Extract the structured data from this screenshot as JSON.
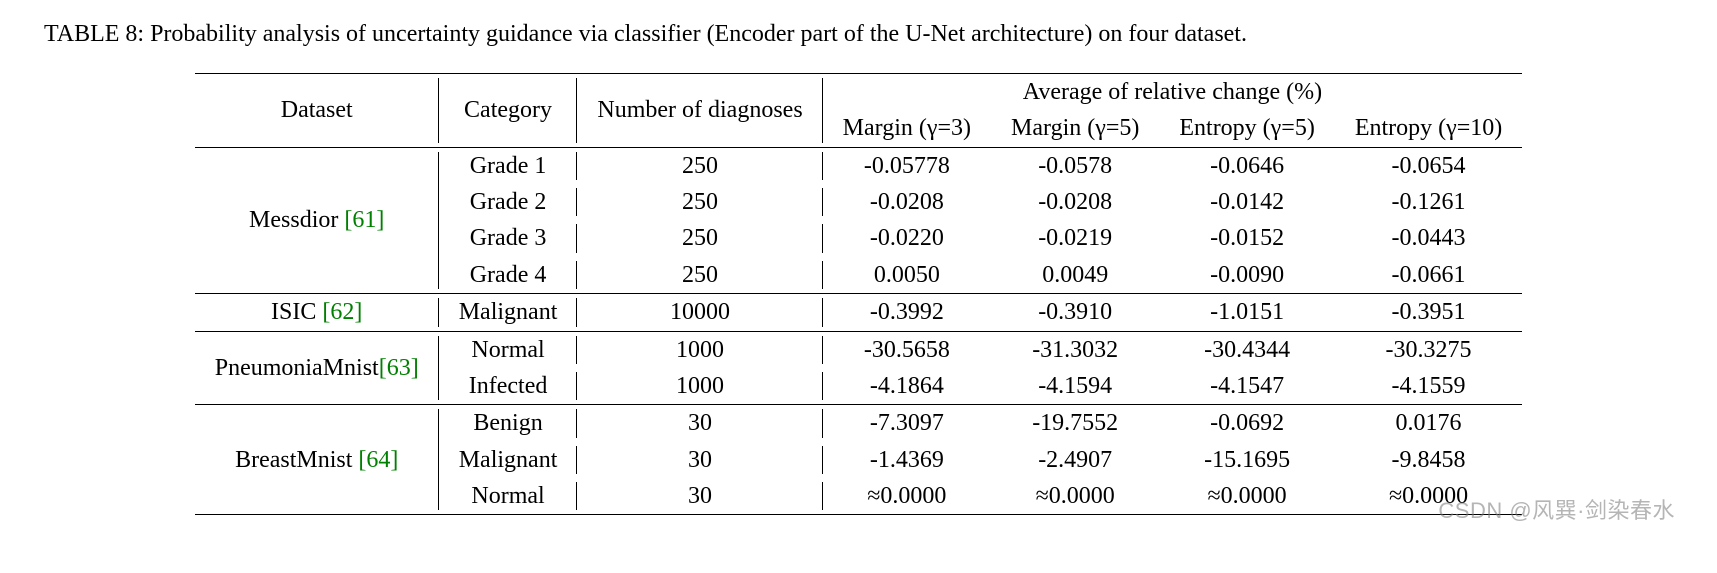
{
  "caption": "TABLE 8: Probability analysis of uncertainty guidance via classifier (Encoder part of the U-Net architecture) on four dataset.",
  "header": {
    "dataset": "Dataset",
    "category": "Category",
    "diagnoses": "Number of diagnoses",
    "group": "Average of relative change (%)",
    "cols": {
      "margin3": "Margin (γ=3)",
      "margin5": "Margin (γ=5)",
      "entropy5": "Entropy (γ=5)",
      "entropy10": "Entropy (γ=10)"
    }
  },
  "datasets": [
    {
      "name_plain": "Messdior ",
      "cite_label": "[61]",
      "rows": [
        {
          "category": "Grade 1",
          "n": "250",
          "margin3": "-0.05778",
          "margin5": "-0.0578",
          "entropy5": "-0.0646",
          "entropy10": "-0.0654"
        },
        {
          "category": "Grade 2",
          "n": "250",
          "margin3": "-0.0208",
          "margin5": "-0.0208",
          "entropy5": "-0.0142",
          "entropy10": "-0.1261"
        },
        {
          "category": "Grade 3",
          "n": "250",
          "margin3": "-0.0220",
          "margin5": "-0.0219",
          "entropy5": "-0.0152",
          "entropy10": "-0.0443"
        },
        {
          "category": "Grade 4",
          "n": "250",
          "margin3": "0.0050",
          "margin5": "0.0049",
          "entropy5": "-0.0090",
          "entropy10": "-0.0661"
        }
      ]
    },
    {
      "name_plain": "ISIC ",
      "cite_label": "[62]",
      "rows": [
        {
          "category": "Malignant",
          "n": "10000",
          "margin3": "-0.3992",
          "margin5": "-0.3910",
          "entropy5": "-1.0151",
          "entropy10": "-0.3951"
        }
      ]
    },
    {
      "name_plain": "PneumoniaMnist",
      "cite_label": "[63]",
      "rows": [
        {
          "category": "Normal",
          "n": "1000",
          "margin3": "-30.5658",
          "margin5": "-31.3032",
          "entropy5": "-30.4344",
          "entropy10": "-30.3275"
        },
        {
          "category": "Infected",
          "n": "1000",
          "margin3": "-4.1864",
          "margin5": "-4.1594",
          "entropy5": "-4.1547",
          "entropy10": "-4.1559"
        }
      ]
    },
    {
      "name_plain": "BreastMnist ",
      "cite_label": "[64]",
      "rows": [
        {
          "category": "Benign",
          "n": "30",
          "margin3": "-7.3097",
          "margin5": "-19.7552",
          "entropy5": "-0.0692",
          "entropy10": "0.0176"
        },
        {
          "category": "Malignant",
          "n": "30",
          "margin3": "-1.4369",
          "margin5": "-2.4907",
          "entropy5": "-15.1695",
          "entropy10": "-9.8458"
        },
        {
          "category": "Normal",
          "n": "30",
          "margin3": "≈0.0000",
          "margin5": "≈0.0000",
          "entropy5": "≈0.0000",
          "entropy10": "≈0.0000"
        }
      ]
    }
  ],
  "watermark": "CSDN @风巽·剑染春水",
  "style": {
    "font_family": "Times New Roman",
    "font_size_pt": 18,
    "cite_color": "#008000",
    "rule_color": "#000000",
    "background_color": "#ffffff",
    "text_color": "#000000",
    "watermark_color": "rgba(120,120,120,0.55)"
  }
}
